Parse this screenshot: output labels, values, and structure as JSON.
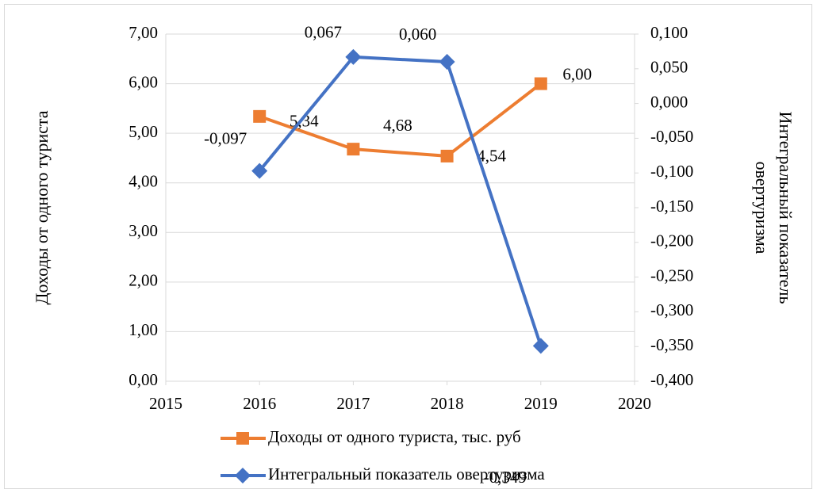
{
  "chart_data": {
    "type": "line",
    "ylabel": "Доходы от одного туриста",
    "y2label": "Интегральный показатель овертуризма",
    "xlim": [
      2015,
      2020
    ],
    "xticks": [
      2015,
      2016,
      2017,
      2018,
      2019,
      2020
    ],
    "ylim": [
      0,
      7
    ],
    "yticks": [
      {
        "value": 0,
        "label": "0,00"
      },
      {
        "value": 1,
        "label": "1,00"
      },
      {
        "value": 2,
        "label": "2,00"
      },
      {
        "value": 3,
        "label": "3,00"
      },
      {
        "value": 4,
        "label": "4,00"
      },
      {
        "value": 5,
        "label": "5,00"
      },
      {
        "value": 6,
        "label": "6,00"
      },
      {
        "value": 7,
        "label": "7,00"
      }
    ],
    "y2lim": [
      -0.4,
      0.1
    ],
    "y2ticks": [
      {
        "value": 0.1,
        "label": "0,100"
      },
      {
        "value": 0.05,
        "label": "0,050"
      },
      {
        "value": 0,
        "label": "0,000"
      },
      {
        "value": -0.05,
        "label": "-0,050"
      },
      {
        "value": -0.1,
        "label": "-0,100"
      },
      {
        "value": -0.15,
        "label": "-0,150"
      },
      {
        "value": -0.2,
        "label": "-0,200"
      },
      {
        "value": -0.25,
        "label": "-0,250"
      },
      {
        "value": -0.3,
        "label": "-0,300"
      },
      {
        "value": -0.35,
        "label": "-0,350"
      },
      {
        "value": -0.4,
        "label": "-0,400"
      }
    ],
    "grid": true,
    "legend": "bottom",
    "x": [
      2016,
      2017,
      2018,
      2019
    ],
    "series": [
      {
        "name": "Доходы от одного туриста, тыс. руб",
        "color": "#ed7d31",
        "marker": "square",
        "values": [
          5.34,
          4.68,
          4.54,
          6.0
        ],
        "value_labels": [
          "5,34",
          "4,68",
          "4,54",
          "6,00"
        ]
      },
      {
        "name": "Интегральный показатель овертуризма",
        "color": "#4472c4",
        "marker": "diamond",
        "axis": "y2",
        "values": [
          -0.097,
          0.067,
          0.06,
          -0.349
        ],
        "value_labels": [
          "-0,097",
          "0,067",
          "0,060",
          "-0,349"
        ]
      }
    ]
  }
}
